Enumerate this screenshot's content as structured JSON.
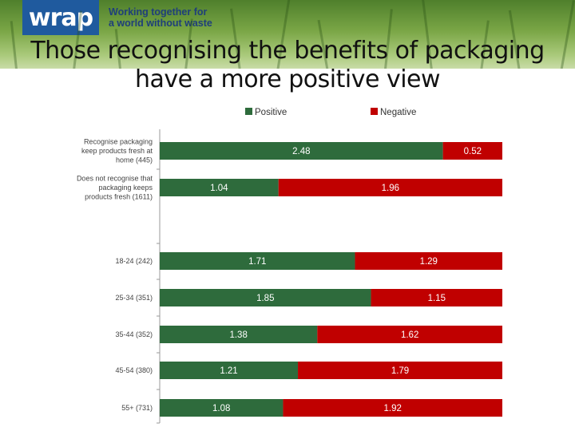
{
  "header": {
    "logo": "wrap",
    "tagline_line1": "Working together for",
    "tagline_line2": "a world without waste"
  },
  "slide": {
    "title_line1": "Those recognising the benefits of packaging",
    "title_line2": "have a more positive view"
  },
  "colors": {
    "positive": "#2e6b3c",
    "negative": "#c00000",
    "logo_bg": "#1f5a9e"
  },
  "chart_data": {
    "type": "bar",
    "orientation": "horizontal",
    "stacked": true,
    "title": "",
    "xlabel": "",
    "ylabel": "",
    "xlim": [
      0,
      3
    ],
    "legend_position": "top",
    "categories": [
      "Recognise packaging keep products fresh at home (445)",
      "Does not recognise that packaging keeps products fresh (1611)",
      "18-24 (242)",
      "25-34 (351)",
      "35-44 (352)",
      "45-54 (380)",
      "55+ (731)"
    ],
    "category_label_lines": [
      [
        "Recognise packaging",
        "keep products fresh at",
        "home (445)"
      ],
      [
        "Does not recognise that",
        "packaging keeps",
        "products fresh (1611)"
      ],
      [
        "18-24 (242)"
      ],
      [
        "25-34 (351)"
      ],
      [
        "35-44 (352)"
      ],
      [
        "45-54 (380)"
      ],
      [
        "55+ (731)"
      ]
    ],
    "series": [
      {
        "name": "Positive",
        "values": [
          2.48,
          1.04,
          1.71,
          1.85,
          1.38,
          1.21,
          1.08
        ],
        "labels": [
          "2.48",
          "1.04",
          "1.71",
          "1.85",
          "1.38",
          "1.21",
          "1.08"
        ]
      },
      {
        "name": "Negative",
        "values": [
          0.52,
          1.96,
          1.29,
          1.15,
          1.62,
          1.79,
          1.92
        ],
        "labels": [
          "0.52",
          "1.96",
          "1.29",
          "1.15",
          "1.62",
          "1.79",
          "1.92"
        ]
      }
    ]
  }
}
